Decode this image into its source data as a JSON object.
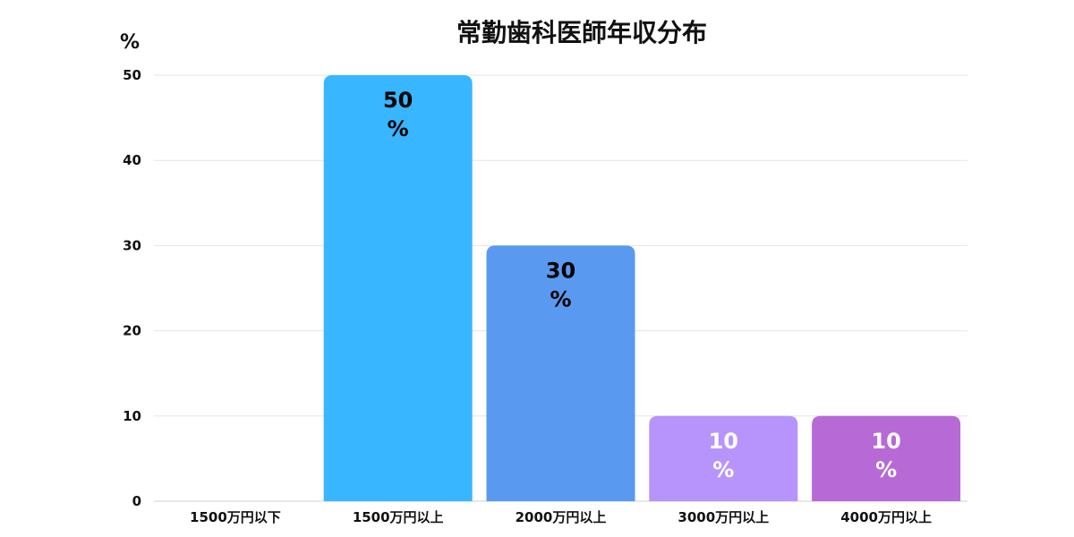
{
  "chart_data": {
    "type": "bar",
    "title": "常勤歯科医師年収分布",
    "ylabel": "%",
    "xlabel": "",
    "categories": [
      "1500万円以下",
      "1500万円以上",
      "2000万円以上",
      "3000万円以上",
      "4000万円以上"
    ],
    "values": [
      0,
      50,
      30,
      10,
      10
    ],
    "data_labels": [
      "",
      "50\n%",
      "30\n%",
      "10\n%",
      "10\n%"
    ],
    "bar_colors": [
      "#38b6ff",
      "#38b6ff",
      "#5a99f0",
      "#b794fb",
      "#b76ad6"
    ],
    "label_colors": [
      "#000000",
      "#000000",
      "#000000",
      "#ffffff",
      "#ffffff"
    ],
    "ylim": [
      0,
      50
    ],
    "yticks": [
      0,
      10,
      20,
      30,
      40,
      50
    ],
    "grid": true
  }
}
